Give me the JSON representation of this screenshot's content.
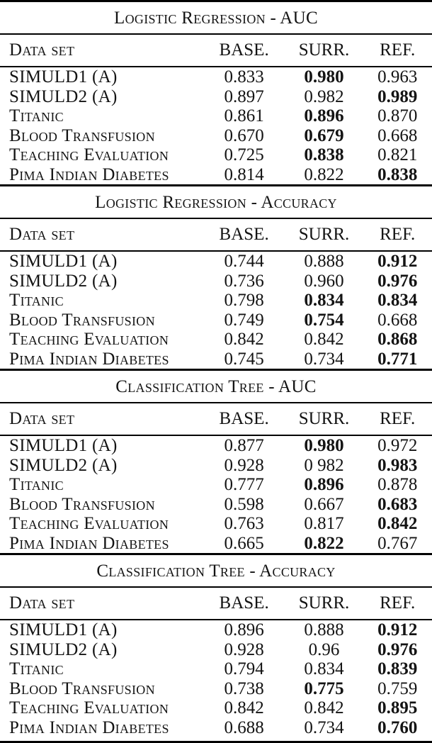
{
  "tables": [
    {
      "title": "Logistic Regression - AUC",
      "headers": [
        "Data set",
        "BASE.",
        "SURR.",
        "REF."
      ],
      "rows": [
        {
          "cells": [
            {
              "text": "SIMULD1 (A)",
              "bold": false
            },
            {
              "text": "0.833",
              "bold": false
            },
            {
              "text": "0.980",
              "bold": true
            },
            {
              "text": "0.963",
              "bold": false
            }
          ]
        },
        {
          "cells": [
            {
              "text": "SIMULD2 (A)",
              "bold": false
            },
            {
              "text": "0.897",
              "bold": false
            },
            {
              "text": "0.982",
              "bold": false
            },
            {
              "text": "0.989",
              "bold": true
            }
          ]
        },
        {
          "cells": [
            {
              "text": "Titanic",
              "bold": false
            },
            {
              "text": "0.861",
              "bold": false
            },
            {
              "text": "0.896",
              "bold": true
            },
            {
              "text": "0.870",
              "bold": false
            }
          ]
        },
        {
          "cells": [
            {
              "text": "Blood Transfusion",
              "bold": false
            },
            {
              "text": "0.670",
              "bold": false
            },
            {
              "text": "0.679",
              "bold": true
            },
            {
              "text": "0.668",
              "bold": false
            }
          ]
        },
        {
          "cells": [
            {
              "text": "Teaching Evaluation",
              "bold": false
            },
            {
              "text": "0.725",
              "bold": false
            },
            {
              "text": "0.838",
              "bold": true
            },
            {
              "text": "0.821",
              "bold": false
            }
          ]
        },
        {
          "cells": [
            {
              "text": "Pima Indian Diabetes",
              "bold": false
            },
            {
              "text": "0.814",
              "bold": false
            },
            {
              "text": "0.822",
              "bold": false
            },
            {
              "text": "0.838",
              "bold": true
            }
          ]
        }
      ]
    },
    {
      "title": "Logistic Regression - Accuracy",
      "headers": [
        "Data set",
        "BASE.",
        "SURR.",
        "REF."
      ],
      "rows": [
        {
          "cells": [
            {
              "text": "SIMULD1 (A)",
              "bold": false
            },
            {
              "text": "0.744",
              "bold": false
            },
            {
              "text": "0.888",
              "bold": false
            },
            {
              "text": "0.912",
              "bold": true
            }
          ]
        },
        {
          "cells": [
            {
              "text": "SIMULD2 (A)",
              "bold": false
            },
            {
              "text": "0.736",
              "bold": false
            },
            {
              "text": "0.960",
              "bold": false
            },
            {
              "text": "0.976",
              "bold": true
            }
          ]
        },
        {
          "cells": [
            {
              "text": "Titanic",
              "bold": false
            },
            {
              "text": "0.798",
              "bold": false
            },
            {
              "text": "0.834",
              "bold": true
            },
            {
              "text": "0.834",
              "bold": true
            }
          ]
        },
        {
          "cells": [
            {
              "text": "Blood Transfusion",
              "bold": false
            },
            {
              "text": "0.749",
              "bold": false
            },
            {
              "text": "0.754",
              "bold": true
            },
            {
              "text": "0.668",
              "bold": false
            }
          ]
        },
        {
          "cells": [
            {
              "text": "Teaching Evaluation",
              "bold": false
            },
            {
              "text": "0.842",
              "bold": false
            },
            {
              "text": "0.842",
              "bold": false
            },
            {
              "text": "0.868",
              "bold": true
            }
          ]
        },
        {
          "cells": [
            {
              "text": "Pima Indian Diabetes",
              "bold": false
            },
            {
              "text": "0.745",
              "bold": false
            },
            {
              "text": "0.734",
              "bold": false
            },
            {
              "text": "0.771",
              "bold": true
            }
          ]
        }
      ]
    },
    {
      "title": "Classification Tree - AUC",
      "headers": [
        "Data set",
        "BASE.",
        "SURR.",
        "REF."
      ],
      "rows": [
        {
          "cells": [
            {
              "text": "SIMULD1 (A)",
              "bold": false
            },
            {
              "text": "0.877",
              "bold": false
            },
            {
              "text": "0.980",
              "bold": true
            },
            {
              "text": "0.972",
              "bold": false
            }
          ]
        },
        {
          "cells": [
            {
              "text": "SIMULD2 (A)",
              "bold": false
            },
            {
              "text": "0.928",
              "bold": false
            },
            {
              "text": "0 982",
              "bold": false
            },
            {
              "text": "0.983",
              "bold": true
            }
          ]
        },
        {
          "cells": [
            {
              "text": "Titanic",
              "bold": false
            },
            {
              "text": "0.777",
              "bold": false
            },
            {
              "text": "0.896",
              "bold": true
            },
            {
              "text": "0.878",
              "bold": false
            }
          ]
        },
        {
          "cells": [
            {
              "text": "Blood Transfusion",
              "bold": false
            },
            {
              "text": "0.598",
              "bold": false
            },
            {
              "text": "0.667",
              "bold": false
            },
            {
              "text": "0.683",
              "bold": true
            }
          ]
        },
        {
          "cells": [
            {
              "text": "Teaching Evaluation",
              "bold": false
            },
            {
              "text": "0.763",
              "bold": false
            },
            {
              "text": "0.817",
              "bold": false
            },
            {
              "text": "0.842",
              "bold": true
            }
          ]
        },
        {
          "cells": [
            {
              "text": "Pima Indian Diabetes",
              "bold": false
            },
            {
              "text": "0.665",
              "bold": false
            },
            {
              "text": "0.822",
              "bold": true
            },
            {
              "text": "0.767",
              "bold": false
            }
          ]
        }
      ]
    },
    {
      "title": "Classification Tree - Accuracy",
      "headers": [
        "Data set",
        "BASE.",
        "SURR.",
        "REF."
      ],
      "rows": [
        {
          "cells": [
            {
              "text": "SIMULD1 (A)",
              "bold": false
            },
            {
              "text": "0.896",
              "bold": false
            },
            {
              "text": "0.888",
              "bold": false
            },
            {
              "text": "0.912",
              "bold": true
            }
          ]
        },
        {
          "cells": [
            {
              "text": "SIMULD2 (A)",
              "bold": false
            },
            {
              "text": "0.928",
              "bold": false
            },
            {
              "text": "0.96",
              "bold": false
            },
            {
              "text": "0.976",
              "bold": true
            }
          ]
        },
        {
          "cells": [
            {
              "text": "Titanic",
              "bold": false
            },
            {
              "text": "0.794",
              "bold": false
            },
            {
              "text": "0.834",
              "bold": false
            },
            {
              "text": "0.839",
              "bold": true
            }
          ]
        },
        {
          "cells": [
            {
              "text": "Blood Transfusion",
              "bold": false
            },
            {
              "text": "0.738",
              "bold": false
            },
            {
              "text": "0.775",
              "bold": true
            },
            {
              "text": "0.759",
              "bold": false
            }
          ]
        },
        {
          "cells": [
            {
              "text": "Teaching Evaluation",
              "bold": false
            },
            {
              "text": "0.842",
              "bold": false
            },
            {
              "text": "0.842",
              "bold": false
            },
            {
              "text": "0.895",
              "bold": true
            }
          ]
        },
        {
          "cells": [
            {
              "text": "Pima Indian Diabetes",
              "bold": false
            },
            {
              "text": "0.688",
              "bold": false
            },
            {
              "text": "0.734",
              "bold": false
            },
            {
              "text": "0.760",
              "bold": true
            }
          ]
        }
      ]
    }
  ]
}
